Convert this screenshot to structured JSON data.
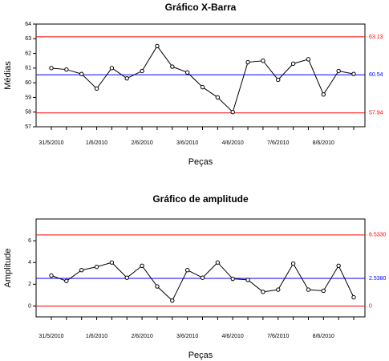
{
  "chart_data": [
    {
      "type": "line",
      "title": "Gráfico X-Barra",
      "xlabel": "Peças",
      "ylabel": "Médias",
      "ylim": [
        57,
        64
      ],
      "yticks": [
        "57",
        "58",
        "59",
        "60",
        "61",
        "62",
        "63",
        "64"
      ],
      "x_tick_labels": [
        "31/5/2010",
        "1/6/2010",
        "2/6/2010",
        "3/6/2010",
        "4/6/2010",
        "7/6/2010",
        "8/6/2010"
      ],
      "x_tick_positions": [
        1,
        4,
        7,
        10,
        13,
        16,
        19
      ],
      "x_range": [
        0.5,
        21.5
      ],
      "series": [
        {
          "values": [
            61.0,
            60.9,
            60.6,
            59.6,
            61.0,
            60.3,
            60.8,
            62.5,
            61.1,
            60.7,
            59.7,
            59.0,
            58.0,
            61.4,
            61.5,
            60.2,
            61.3,
            61.6,
            59.2,
            60.8,
            60.6
          ]
        }
      ],
      "reference_lines": [
        {
          "value": 63.13,
          "label": "63.13",
          "color": "#ff0000"
        },
        {
          "value": 60.54,
          "label": "60.54",
          "color": "#0000ff"
        },
        {
          "value": 57.94,
          "label": "57.94",
          "color": "#ff0000"
        }
      ],
      "grid": false,
      "line_color": "#000000"
    },
    {
      "type": "line",
      "title": "Gráfico de amplitude",
      "xlabel": "Peças",
      "ylabel": "Amplitude",
      "ylim": [
        -1,
        8
      ],
      "yticks": [
        "0",
        "2",
        "4",
        "6"
      ],
      "x_tick_labels": [
        "31/5/2010",
        "1/6/2010",
        "2/6/2010",
        "3/6/2010",
        "4/6/2010",
        "7/6/2010",
        "8/6/2010"
      ],
      "x_tick_positions": [
        1,
        4,
        7,
        10,
        13,
        16,
        19
      ],
      "x_range": [
        0.5,
        21.5
      ],
      "series": [
        {
          "values": [
            2.8,
            2.3,
            3.3,
            3.6,
            4.0,
            2.6,
            3.7,
            1.8,
            0.5,
            3.3,
            2.6,
            4.0,
            2.5,
            2.4,
            1.3,
            1.5,
            3.9,
            1.5,
            1.4,
            3.7,
            0.8
          ]
        }
      ],
      "reference_lines": [
        {
          "value": 6.533,
          "label": "6.5330",
          "color": "#ff0000"
        },
        {
          "value": 2.538,
          "label": "2.5380",
          "color": "#0000ff"
        },
        {
          "value": 0,
          "label": "0",
          "color": "#ff0000"
        }
      ],
      "grid": false,
      "line_color": "#000000"
    }
  ]
}
